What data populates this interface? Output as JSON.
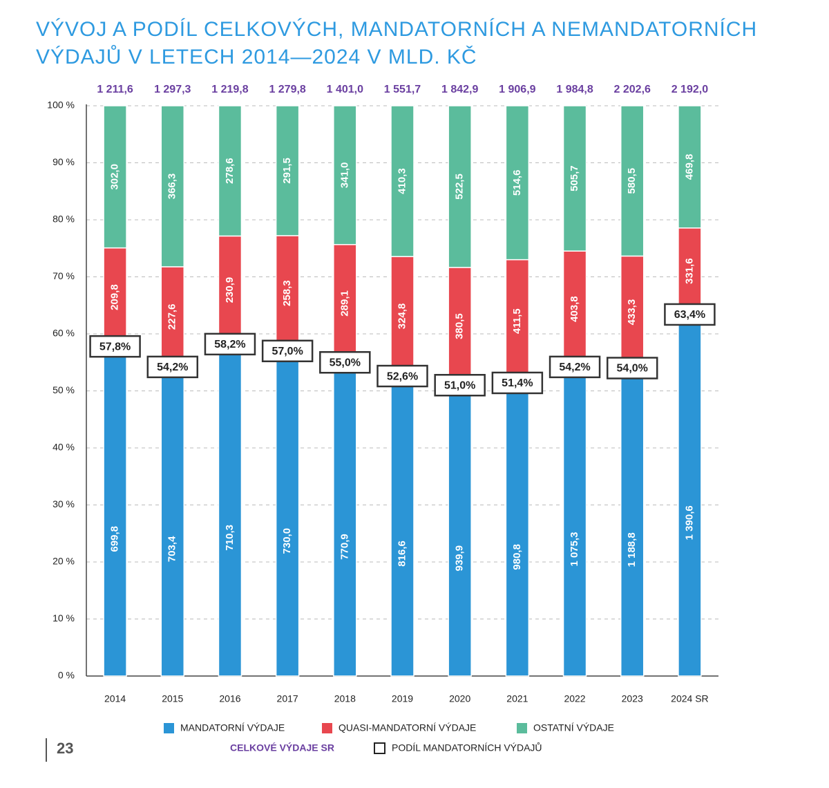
{
  "chart_data": {
    "type": "bar",
    "stacking": "percent",
    "title_lines": [
      "VÝVOJ A PODÍL CELKOVÝCH, MANDATORNÍCH A NEMANDATORNÍCH",
      "VÝDAJŮ V LETECH 2014—2024 V MLD. KČ"
    ],
    "categories": [
      "2014",
      "2015",
      "2016",
      "2017",
      "2018",
      "2019",
      "2020",
      "2021",
      "2022",
      "2023",
      "2024 SR"
    ],
    "series": [
      {
        "name": "MANDATORNÍ VÝDAJE",
        "color": "#2b95d6",
        "values": [
          699.8,
          703.4,
          710.3,
          730.0,
          770.9,
          816.6,
          939.9,
          980.8,
          1075.3,
          1188.8,
          1390.6
        ],
        "value_labels": [
          "699,8",
          "703,4",
          "710,3",
          "730,0",
          "770,9",
          "816,6",
          "939,9",
          "980,8",
          "1 075,3",
          "1 188,8",
          "1 390,6"
        ]
      },
      {
        "name": "QUASI-MANDATORNÍ VÝDAJE",
        "color": "#e8474f",
        "values": [
          209.8,
          227.6,
          230.9,
          258.3,
          289.1,
          324.8,
          380.5,
          411.5,
          403.8,
          433.3,
          331.6
        ],
        "value_labels": [
          "209,8",
          "227,6",
          "230,9",
          "258,3",
          "289,1",
          "324,8",
          "380,5",
          "411,5",
          "403,8",
          "433,3",
          "331,6"
        ]
      },
      {
        "name": "OSTATNÍ VÝDAJE",
        "color": "#5bbc9c",
        "values": [
          302.0,
          366.3,
          278.6,
          291.5,
          341.0,
          410.3,
          522.5,
          514.6,
          505.7,
          580.5,
          469.8
        ],
        "value_labels": [
          "302,0",
          "366,3",
          "278,6",
          "291,5",
          "341,0",
          "410,3",
          "522,5",
          "514,6",
          "505,7",
          "580,5",
          "469,8"
        ]
      }
    ],
    "totals": {
      "name": "CELKOVÉ VÝDAJE SR",
      "color": "#6a3fa0",
      "values": [
        1211.6,
        1297.3,
        1219.8,
        1279.8,
        1401.0,
        1551.7,
        1842.9,
        1906.9,
        1984.8,
        2202.6,
        2192.0
      ],
      "value_labels": [
        "1 211,6",
        "1 297,3",
        "1 219,8",
        "1 279,8",
        "1 401,0",
        "1 551,7",
        "1 842,9",
        "1 906,9",
        "1 984,8",
        "2 202,6",
        "2 192,0"
      ]
    },
    "shares": {
      "name": "PODÍL MANDATORNÍCH VÝDAJŮ",
      "values": [
        57.8,
        54.2,
        58.2,
        57.0,
        55.0,
        52.6,
        51.0,
        51.4,
        54.2,
        54.0,
        63.4
      ],
      "value_labels": [
        "57,8%",
        "54,2%",
        "58,2%",
        "57,0%",
        "55,0%",
        "52,6%",
        "51,0%",
        "51,4%",
        "54,2%",
        "54,0%",
        "63,4%"
      ]
    },
    "ylim": [
      0,
      100
    ],
    "yticks": [
      {
        "value": 0,
        "label": "0 %"
      },
      {
        "value": 10,
        "label": "10 %"
      },
      {
        "value": 20,
        "label": "20 %"
      },
      {
        "value": 30,
        "label": "30 %"
      },
      {
        "value": 40,
        "label": "40 %"
      },
      {
        "value": 50,
        "label": "50 %"
      },
      {
        "value": 60,
        "label": "60 %"
      },
      {
        "value": 70,
        "label": "70 %"
      },
      {
        "value": 80,
        "label": "80 %"
      },
      {
        "value": 90,
        "label": "90 %"
      },
      {
        "value": 100,
        "label": "100 %"
      }
    ],
    "grid": true,
    "page_number": "23"
  }
}
